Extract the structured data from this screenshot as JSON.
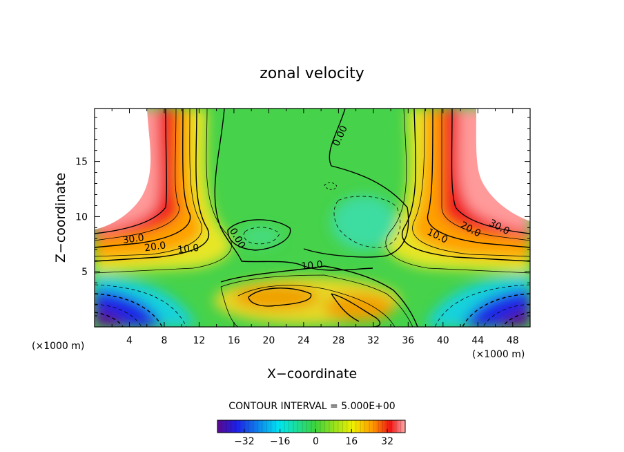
{
  "chart_data": {
    "type": "contour",
    "title": "zonal velocity",
    "xlabel": "X−coordinate",
    "ylabel": "Z−coordinate",
    "x_unit_left": "(×1000 m)",
    "x_unit_right": "(×1000 m)",
    "xlim": [
      0,
      50
    ],
    "ylim": [
      0,
      19.8
    ],
    "x_ticks": [
      4,
      8,
      12,
      16,
      20,
      24,
      28,
      32,
      36,
      40,
      44,
      48
    ],
    "y_ticks": [
      5,
      10,
      15
    ],
    "contour_interval_text": "CONTOUR INTERVAL = 5.000E+00",
    "contour_labels": [
      {
        "text": "30.0",
        "x": 4.5,
        "y": 7.7
      },
      {
        "text": "20.0",
        "x": 7.0,
        "y": 7.0
      },
      {
        "text": "10.0",
        "x": 10.8,
        "y": 6.8
      },
      {
        "text": "0.00",
        "x": 16.1,
        "y": 7.9
      },
      {
        "text": "10.0",
        "x": 25.0,
        "y": 5.3
      },
      {
        "text": "0.00",
        "x": 28.5,
        "y": 17.2
      },
      {
        "text": "10.0",
        "x": 39.2,
        "y": 8.0
      },
      {
        "text": "20.0",
        "x": 43.0,
        "y": 8.6
      },
      {
        "text": "30.0",
        "x": 46.3,
        "y": 8.8
      }
    ],
    "colorbar": {
      "ticks": [
        -32,
        -16,
        0,
        16,
        32
      ],
      "range": [
        -44,
        40
      ]
    },
    "colors": {
      "neg_extreme": "#5a0a8c",
      "blue": "#1e1ee6",
      "cyan": "#00e6f0",
      "green": "#3cd23c",
      "yellow": "#f0f000",
      "orange": "#ff9600",
      "red": "#f01414",
      "pink": "#ffaaaa"
    }
  }
}
